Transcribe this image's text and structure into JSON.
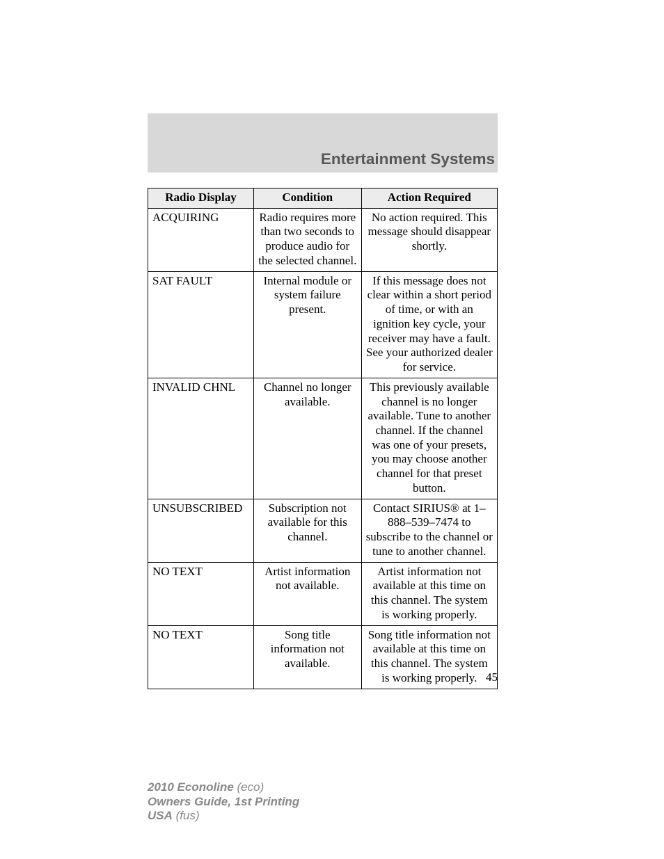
{
  "section_title": "Entertainment Systems",
  "page_number": "45",
  "columns": {
    "c1": "Radio Display",
    "c2": "Condition",
    "c3": "Action Required"
  },
  "rows": [
    {
      "display": "ACQUIRING",
      "condition": "Radio requires more than two seconds to produce audio for the selected channel.",
      "action": "No action required. This message should disappear shortly."
    },
    {
      "display": "SAT FAULT",
      "condition": "Internal module or system failure present.",
      "action": "If this message does not clear within a short period of time, or with an ignition key cycle, your receiver may have a fault. See your authorized dealer for service."
    },
    {
      "display": "INVALID CHNL",
      "condition": "Channel no longer available.",
      "action": "This previously available channel is no longer available. Tune to another channel. If the channel was one of your presets, you may choose another channel for that preset button."
    },
    {
      "display": "UNSUBSCRIBED",
      "condition": "Subscription not available for this channel.",
      "action": "Contact SIRIUS® at 1–888–539–7474 to subscribe to the channel or tune to another channel."
    },
    {
      "display": "NO TEXT",
      "condition": "Artist information not available.",
      "action": "Artist information not available at this time on this channel. The system is working properly."
    },
    {
      "display": "NO TEXT",
      "condition": "Song title information not available.",
      "action": "Song title information not available at this time on this channel. The system is working properly."
    }
  ],
  "footer": {
    "line1_bold": "2010 Econoline",
    "line1_paren": "(eco)",
    "line2_bold": "Owners Guide, 1st Printing",
    "line3_bold": "USA",
    "line3_paren": "(fus)"
  },
  "colors": {
    "gray_band": "#d8d8d8",
    "title_text": "#575757",
    "header_bg": "#ececec",
    "footer_text": "#888888",
    "page_bg": "#ffffff",
    "border": "#000000"
  },
  "typography": {
    "body_font": "Times New Roman",
    "title_font": "Arial",
    "footer_font": "Arial",
    "body_size_pt": 13,
    "title_size_pt": 17
  }
}
